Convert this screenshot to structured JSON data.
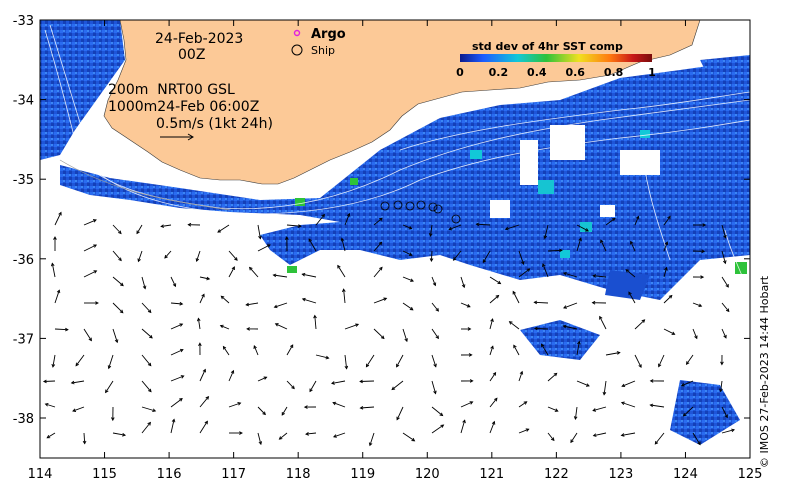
{
  "date_label": "24-Feb-2023",
  "time_label": "00Z",
  "legend": {
    "argo": "Argo",
    "ship": "Ship"
  },
  "info_lines": [
    "200m  NRT00 GSL",
    "1000m24-Feb 06:00Z",
    "0.5m/s (1kt 24h)"
  ],
  "colorbar": {
    "title": "std dev of 4hr SST comp",
    "ticks": [
      "0",
      "0.2",
      "0.4",
      "0.6",
      "0.8",
      "1"
    ],
    "colors": [
      "#0b1a8c",
      "#1d5bff",
      "#12c8d8",
      "#2ec23a",
      "#f0e020",
      "#ff7a10",
      "#c81818",
      "#7a0c0c"
    ]
  },
  "axes": {
    "x_ticks": [
      "114",
      "115",
      "116",
      "117",
      "118",
      "119",
      "120",
      "121",
      "122",
      "123",
      "124",
      "125"
    ],
    "y_ticks": [
      "-33",
      "-34",
      "-35",
      "-36",
      "-37",
      "-38"
    ]
  },
  "colors": {
    "land": "#fcc997",
    "sst_base": "#1f5ce0"
  },
  "copyright": "© IMOS 27-Feb-2023 14:44 Hobart"
}
